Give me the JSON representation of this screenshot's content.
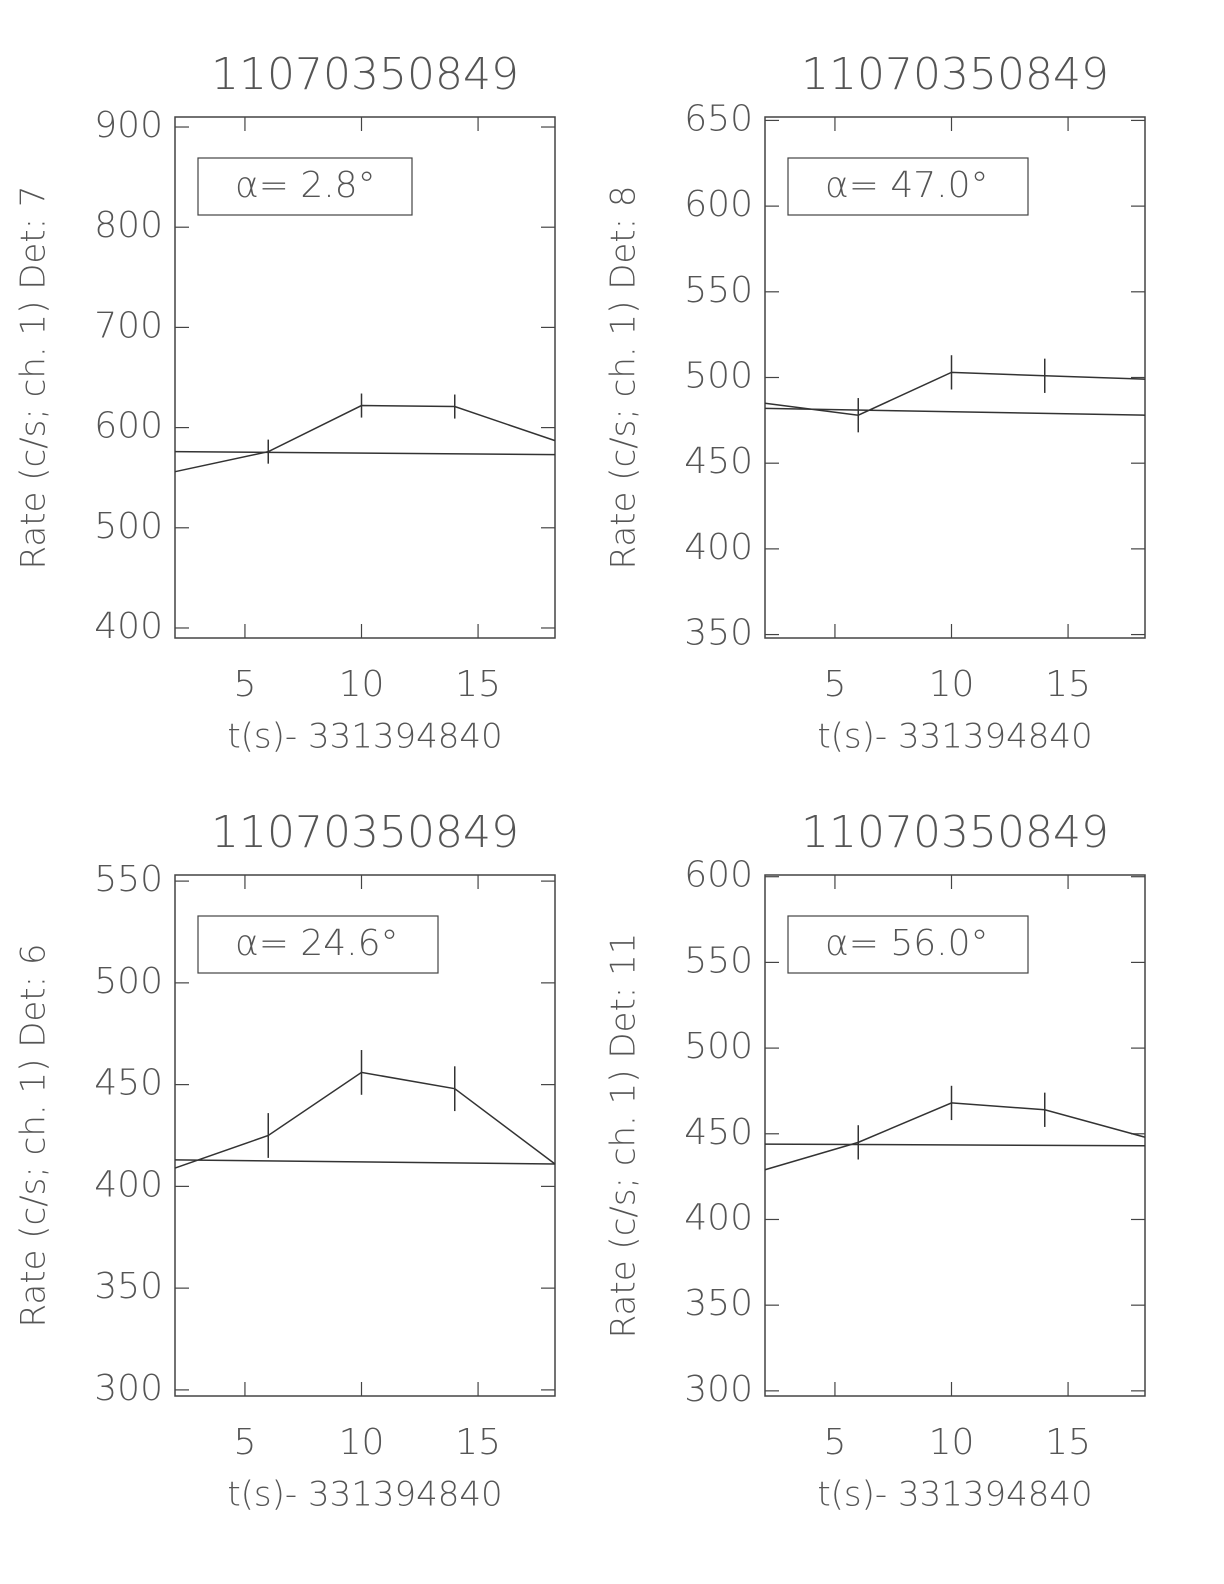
{
  "chart_data": [
    {
      "type": "line",
      "title": "11070350849",
      "ylabel": "Rate (c/s; ch. 1) Det: 7",
      "xlabel": "t(s)- 331394840",
      "annotation": "α= 2.8°",
      "xlim": [
        2,
        18.3
      ],
      "xticks": [
        5,
        10,
        15
      ],
      "ylim": [
        390,
        910
      ],
      "yticks": [
        400,
        500,
        600,
        700,
        800,
        900
      ],
      "series": [
        {
          "color": "#333333",
          "x": [
            2,
            6,
            10,
            14,
            18.3
          ],
          "values": [
            556,
            576,
            622,
            621,
            587
          ],
          "errors": [
            null,
            12,
            12,
            12,
            null
          ]
        },
        {
          "color": "#333333",
          "x": [
            2,
            18.3
          ],
          "values": [
            576,
            573
          ]
        }
      ]
    },
    {
      "type": "line",
      "title": "11070350849",
      "ylabel": "Rate (c/s; ch. 1) Det: 8",
      "xlabel": "t(s)- 331394840",
      "annotation": "α= 47.0°",
      "xlim": [
        2,
        18.3
      ],
      "xticks": [
        5,
        10,
        15
      ],
      "ylim": [
        348,
        652
      ],
      "yticks": [
        350,
        400,
        450,
        500,
        550,
        600,
        650
      ],
      "series": [
        {
          "color": "#333333",
          "x": [
            2,
            6,
            10,
            14,
            18.3
          ],
          "values": [
            485,
            478,
            503,
            501,
            499
          ],
          "errors": [
            null,
            10,
            10,
            10,
            null
          ]
        },
        {
          "color": "#333333",
          "x": [
            2,
            18.3
          ],
          "values": [
            482,
            478
          ]
        }
      ]
    },
    {
      "type": "line",
      "title": "11070350849",
      "ylabel": "Rate (c/s; ch. 1) Det: 6",
      "xlabel": "t(s)- 331394840",
      "annotation": "α= 24.6°",
      "xlim": [
        2,
        18.3
      ],
      "xticks": [
        5,
        10,
        15
      ],
      "ylim": [
        297,
        553
      ],
      "yticks": [
        300,
        350,
        400,
        450,
        500,
        550
      ],
      "series": [
        {
          "color": "#333333",
          "x": [
            2,
            6,
            10,
            14,
            18.3
          ],
          "values": [
            409,
            425,
            456,
            448,
            411
          ],
          "errors": [
            null,
            11,
            11,
            11,
            null
          ]
        },
        {
          "color": "#333333",
          "x": [
            2,
            18.3
          ],
          "values": [
            413,
            411
          ]
        }
      ]
    },
    {
      "type": "line",
      "title": "11070350849",
      "ylabel": "Rate (c/s; ch. 1) Det: 11",
      "xlabel": "t(s)- 331394840",
      "annotation": "α= 56.0°",
      "xlim": [
        2,
        18.3
      ],
      "xticks": [
        5,
        10,
        15
      ],
      "ylim": [
        297,
        601
      ],
      "yticks": [
        300,
        350,
        400,
        450,
        500,
        550,
        600
      ],
      "series": [
        {
          "color": "#333333",
          "x": [
            2,
            6,
            10,
            14,
            18.3
          ],
          "values": [
            429,
            445,
            468,
            464,
            448
          ],
          "errors": [
            null,
            10,
            10,
            10,
            null
          ]
        },
        {
          "color": "#333333",
          "x": [
            2,
            18.3
          ],
          "values": [
            444,
            443
          ]
        }
      ]
    }
  ]
}
